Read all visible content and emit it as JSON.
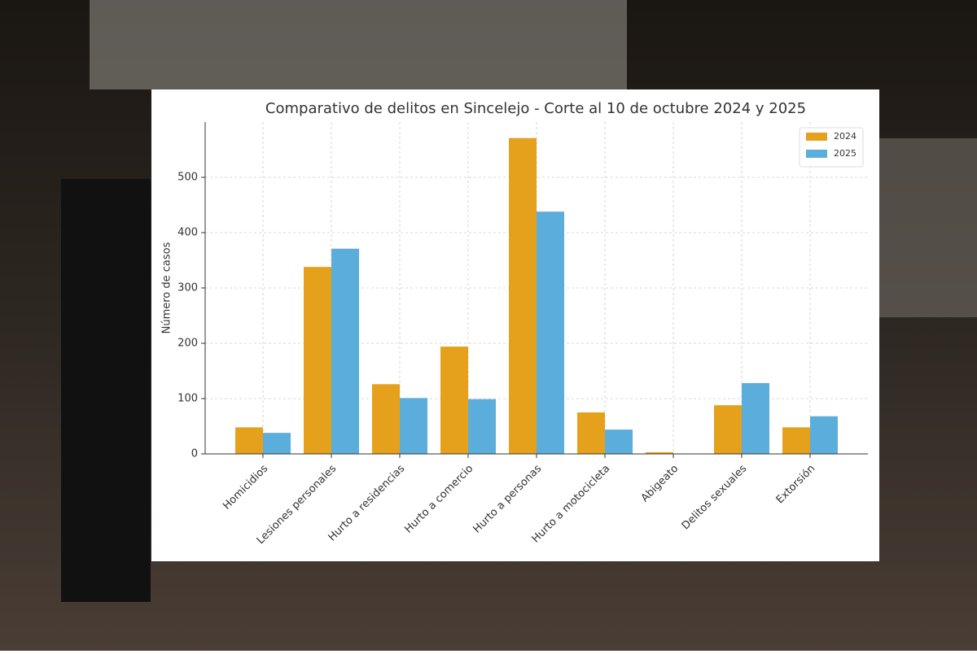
{
  "chart_data": {
    "type": "bar",
    "title": "Comparativo de delitos en Sincelejo - Corte al 10 de octubre 2024 y 2025",
    "y_label": "Número de casos",
    "categories": [
      "Homicidios",
      "Lesiones personales",
      "Hurto a residencias",
      "Hurto a comercio",
      "Hurto a personas",
      "Hurto a motocicleta",
      "Abigeato",
      "Delitos sexuales",
      "Extorsión"
    ],
    "series": [
      {
        "name": "2024",
        "color": "#e5a11b",
        "values": [
          48,
          338,
          126,
          194,
          571,
          75,
          3,
          88,
          48
        ]
      },
      {
        "name": "2025",
        "color": "#5baedb",
        "values": [
          38,
          371,
          101,
          99,
          438,
          44,
          0,
          128,
          68
        ]
      }
    ],
    "ylim": [
      0,
      600
    ],
    "yticks": [
      0,
      100,
      200,
      300,
      400,
      500
    ],
    "grid": true,
    "legend": "upper right"
  }
}
